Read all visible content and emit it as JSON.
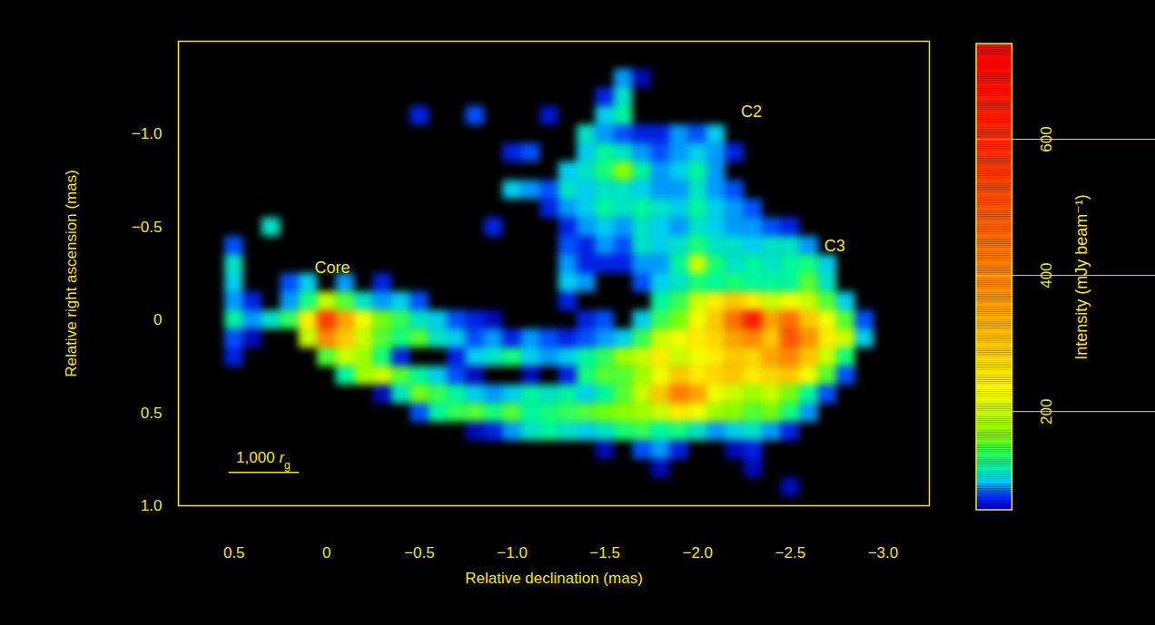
{
  "chart_data": {
    "type": "heatmap",
    "x_label": "Relative declination (mas)",
    "y_label": "Relative right ascension (mas)",
    "xlim": [
      0.8,
      -3.25
    ],
    "xticks": [
      0.5,
      0,
      {
        "value": -0.5,
        "label": "−0.5"
      },
      {
        "value": -1,
        "label": "−1.0"
      },
      {
        "value": -1.5,
        "label": "−1.5"
      },
      {
        "value": -2,
        "label": "−2.0"
      },
      {
        "value": -2.5,
        "label": "−2.5"
      },
      {
        "value": -3,
        "label": "−3.0"
      }
    ],
    "ylim": [
      -1.5,
      1.0
    ],
    "yticks": [
      {
        "value": -1,
        "label": "−1.0"
      },
      {
        "value": -0.5,
        "label": "−0.5"
      },
      0,
      0.5,
      {
        "value": 1,
        "label": "1.0"
      }
    ],
    "colorbar": {
      "label": "Intensity (mJy beam⁻¹)",
      "range": [
        55,
        740
      ],
      "ticks": [
        200,
        400,
        600
      ]
    },
    "annotations": [
      {
        "text": "Core",
        "x": -0.03,
        "y": -0.28
      },
      {
        "text": "C2",
        "x": -2.29,
        "y": -1.12
      },
      {
        "text": "C3",
        "x": -2.74,
        "y": -0.4
      }
    ],
    "scale_bar": {
      "label": "1,000",
      "unit": "r",
      "unit_subscript": "g",
      "length_mas": 0.38,
      "x": 0.53,
      "y": 0.82
    },
    "cells": {
      "x": [
        0.6,
        0.5,
        0.4,
        0.3,
        0.2,
        0.1,
        0,
        -0.1,
        -0.2,
        -0.3,
        -0.4,
        -0.5,
        -0.6,
        -0.7,
        -0.8,
        -0.9,
        -1,
        -1.1,
        -1.2,
        -1.3,
        -1.4,
        -1.5,
        -1.6,
        -1.7,
        -1.8,
        -1.9,
        -2,
        -2.1,
        -2.2,
        -2.3,
        -2.4,
        -2.5,
        -2.6,
        -2.7,
        -2.8,
        -2.9,
        -3
      ],
      "y": [
        -1.3,
        -1.2,
        -1.1,
        -1,
        -0.9,
        -0.8,
        -0.7,
        -0.6,
        -0.5,
        -0.4,
        -0.3,
        -0.2,
        -0.1,
        0,
        0.1,
        0.2,
        0.3,
        0.4,
        0.5,
        0.6,
        0.7,
        0.8,
        0.9
      ],
      "values": [
        [
          0,
          0,
          0,
          0,
          0,
          0,
          0,
          0,
          0,
          0,
          0,
          0,
          0,
          0,
          0,
          0,
          0,
          0,
          0,
          0,
          0,
          0,
          90,
          60,
          0,
          0,
          0,
          0,
          0,
          0,
          0,
          0,
          0,
          0,
          0,
          0,
          0
        ],
        [
          0,
          0,
          0,
          0,
          0,
          0,
          0,
          0,
          0,
          0,
          0,
          0,
          0,
          0,
          0,
          0,
          0,
          0,
          0,
          0,
          0,
          70,
          110,
          0,
          0,
          0,
          0,
          0,
          0,
          0,
          0,
          0,
          0,
          0,
          0,
          0,
          0
        ],
        [
          0,
          0,
          0,
          0,
          0,
          0,
          0,
          0,
          0,
          0,
          0,
          70,
          0,
          0,
          80,
          0,
          0,
          0,
          65,
          0,
          0,
          100,
          120,
          0,
          0,
          0,
          0,
          0,
          0,
          0,
          0,
          0,
          0,
          0,
          0,
          0,
          0
        ],
        [
          0,
          0,
          0,
          0,
          0,
          0,
          0,
          0,
          0,
          0,
          0,
          0,
          0,
          0,
          0,
          0,
          0,
          0,
          0,
          0,
          110,
          90,
          80,
          70,
          70,
          90,
          80,
          100,
          0,
          0,
          0,
          0,
          0,
          0,
          0,
          0,
          0
        ],
        [
          0,
          0,
          0,
          0,
          0,
          0,
          0,
          0,
          0,
          0,
          0,
          0,
          0,
          0,
          0,
          0,
          70,
          80,
          0,
          0,
          100,
          120,
          110,
          90,
          80,
          90,
          100,
          90,
          70,
          0,
          0,
          0,
          0,
          0,
          0,
          0,
          0
        ],
        [
          0,
          0,
          0,
          0,
          0,
          0,
          0,
          0,
          0,
          0,
          0,
          0,
          0,
          0,
          0,
          0,
          0,
          0,
          0,
          100,
          110,
          130,
          170,
          120,
          90,
          100,
          120,
          90,
          0,
          0,
          0,
          0,
          0,
          0,
          0,
          0,
          0
        ],
        [
          0,
          0,
          0,
          0,
          0,
          0,
          0,
          0,
          0,
          0,
          0,
          0,
          0,
          0,
          0,
          0,
          100,
          90,
          80,
          110,
          100,
          110,
          110,
          100,
          90,
          90,
          110,
          90,
          80,
          0,
          0,
          0,
          0,
          0,
          0,
          0,
          0
        ],
        [
          0,
          0,
          0,
          0,
          0,
          0,
          0,
          0,
          0,
          0,
          0,
          0,
          0,
          0,
          0,
          0,
          0,
          0,
          70,
          90,
          100,
          120,
          110,
          120,
          110,
          100,
          120,
          100,
          90,
          80,
          0,
          0,
          0,
          0,
          0,
          0,
          0
        ],
        [
          0,
          0,
          0,
          110,
          0,
          0,
          0,
          0,
          0,
          0,
          0,
          0,
          0,
          0,
          0,
          70,
          0,
          0,
          0,
          70,
          90,
          100,
          90,
          110,
          100,
          90,
          110,
          100,
          90,
          90,
          80,
          70,
          0,
          0,
          0,
          0,
          0
        ],
        [
          0,
          80,
          0,
          0,
          0,
          0,
          0,
          0,
          0,
          0,
          0,
          0,
          0,
          0,
          0,
          0,
          0,
          0,
          0,
          80,
          70,
          90,
          80,
          110,
          100,
          110,
          130,
          110,
          110,
          100,
          110,
          110,
          90,
          0,
          0,
          0,
          0
        ],
        [
          0,
          110,
          0,
          0,
          0,
          0,
          0,
          0,
          0,
          0,
          0,
          0,
          0,
          0,
          0,
          0,
          0,
          0,
          0,
          90,
          70,
          70,
          70,
          90,
          90,
          120,
          200,
          130,
          110,
          120,
          110,
          120,
          130,
          100,
          0,
          0,
          0
        ],
        [
          0,
          100,
          0,
          0,
          80,
          100,
          0,
          90,
          0,
          70,
          0,
          0,
          0,
          0,
          0,
          0,
          0,
          0,
          0,
          100,
          90,
          0,
          0,
          80,
          100,
          110,
          130,
          120,
          130,
          120,
          120,
          120,
          150,
          110,
          0,
          0,
          0
        ],
        [
          0,
          90,
          70,
          0,
          90,
          130,
          200,
          150,
          110,
          90,
          100,
          80,
          0,
          0,
          0,
          0,
          0,
          0,
          0,
          70,
          0,
          0,
          0,
          0,
          120,
          140,
          200,
          250,
          300,
          250,
          200,
          220,
          200,
          150,
          100,
          0,
          0
        ],
        [
          0,
          120,
          90,
          110,
          140,
          250,
          550,
          350,
          220,
          160,
          140,
          110,
          100,
          80,
          70,
          60,
          0,
          0,
          0,
          0,
          70,
          80,
          0,
          100,
          140,
          160,
          220,
          300,
          450,
          650,
          350,
          450,
          300,
          220,
          150,
          80,
          0
        ],
        [
          0,
          80,
          60,
          0,
          0,
          200,
          400,
          300,
          200,
          150,
          130,
          150,
          110,
          100,
          80,
          90,
          70,
          90,
          80,
          70,
          80,
          90,
          100,
          140,
          200,
          220,
          250,
          280,
          350,
          400,
          300,
          500,
          380,
          250,
          200,
          100,
          0
        ],
        [
          0,
          70,
          0,
          0,
          0,
          0,
          150,
          200,
          180,
          130,
          70,
          0,
          0,
          70,
          100,
          110,
          130,
          100,
          90,
          100,
          120,
          140,
          180,
          200,
          250,
          200,
          220,
          250,
          300,
          280,
          350,
          400,
          300,
          200,
          130,
          0,
          0
        ],
        [
          0,
          0,
          0,
          0,
          0,
          0,
          0,
          120,
          180,
          200,
          150,
          120,
          100,
          80,
          60,
          0,
          0,
          60,
          0,
          70,
          130,
          150,
          150,
          180,
          220,
          300,
          250,
          280,
          300,
          250,
          280,
          300,
          220,
          150,
          80,
          0,
          0
        ],
        [
          0,
          0,
          0,
          0,
          0,
          0,
          0,
          0,
          0,
          60,
          110,
          160,
          140,
          120,
          100,
          90,
          100,
          120,
          110,
          120,
          100,
          120,
          150,
          200,
          300,
          420,
          350,
          220,
          200,
          180,
          200,
          160,
          120,
          80,
          0,
          0,
          0
        ],
        [
          0,
          0,
          0,
          0,
          0,
          0,
          0,
          0,
          0,
          0,
          0,
          80,
          120,
          140,
          150,
          130,
          150,
          120,
          130,
          140,
          150,
          160,
          170,
          180,
          200,
          250,
          220,
          180,
          170,
          150,
          160,
          130,
          90,
          0,
          0,
          0,
          0
        ],
        [
          0,
          0,
          0,
          0,
          0,
          0,
          0,
          0,
          0,
          0,
          0,
          0,
          0,
          0,
          60,
          70,
          90,
          110,
          120,
          110,
          100,
          110,
          130,
          140,
          120,
          130,
          110,
          90,
          100,
          110,
          90,
          70,
          0,
          0,
          0,
          0,
          0
        ],
        [
          0,
          0,
          0,
          0,
          0,
          0,
          0,
          0,
          0,
          0,
          0,
          0,
          0,
          0,
          0,
          0,
          0,
          0,
          0,
          0,
          0,
          60,
          0,
          80,
          90,
          70,
          0,
          0,
          60,
          70,
          0,
          0,
          0,
          0,
          0,
          0,
          0
        ],
        [
          0,
          0,
          0,
          0,
          0,
          0,
          0,
          0,
          0,
          0,
          0,
          0,
          0,
          0,
          0,
          0,
          0,
          0,
          0,
          0,
          0,
          0,
          0,
          0,
          60,
          0,
          0,
          0,
          0,
          60,
          0,
          0,
          0,
          0,
          0,
          0,
          0
        ],
        [
          0,
          0,
          0,
          0,
          0,
          0,
          0,
          0,
          0,
          0,
          0,
          0,
          0,
          0,
          0,
          0,
          0,
          0,
          0,
          0,
          0,
          0,
          0,
          0,
          0,
          0,
          0,
          0,
          0,
          0,
          0,
          60,
          0,
          0,
          0,
          0,
          0
        ]
      ]
    }
  }
}
